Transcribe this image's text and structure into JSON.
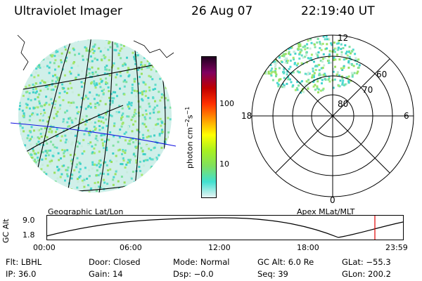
{
  "header": {
    "instrument": "Ultraviolet Imager",
    "date": "26 Aug 07",
    "time": "22:19:40 UT"
  },
  "colorbar": {
    "unit_label": "photon cm",
    "unit_sup1": "−2",
    "unit_mid": "s",
    "unit_sup2": "−1",
    "ticks": [
      "100",
      "10"
    ],
    "colors": [
      "#e8f4f4",
      "#40e0d0",
      "#7fe060",
      "#a8f020",
      "#ffff00",
      "#ff9900",
      "#ff3000",
      "#c00000",
      "#800060",
      "#200020"
    ]
  },
  "left_map": {
    "caption": "Geographic Lat/Lon"
  },
  "polar_plot": {
    "caption": "Apex MLat/MLT",
    "lat_labels": [
      "60",
      "70",
      "80"
    ],
    "mlt_labels": {
      "top": "12",
      "left": "18",
      "right": "6",
      "bottom": "0"
    }
  },
  "altitude_plot": {
    "ylabel": "GC Alt",
    "y_ticks": [
      "9.0",
      "1.8"
    ],
    "x_ticks": [
      "00:00",
      "06:00",
      "12:00",
      "18:00",
      "23:59"
    ],
    "marker_color": "#e00000"
  },
  "status": {
    "flt": "Flt: LBHL",
    "ip": "IP: 36.0",
    "door": "Door: Closed",
    "gain": "Gain: 14",
    "mode": "Mode: Normal",
    "dsp": "Dsp:   −0.0",
    "gc_alt": "GC Alt: 6.0 Re",
    "seq": "Seq: 39",
    "glat": "GLat: −55.3",
    "glon": "GLon: 200.2"
  }
}
